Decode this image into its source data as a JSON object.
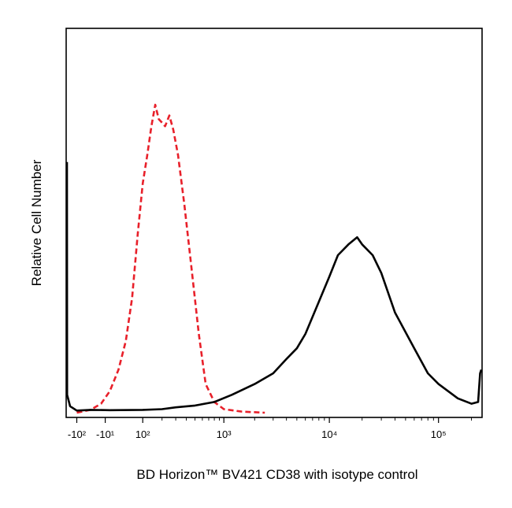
{
  "chart_data": {
    "type": "line",
    "title": "",
    "xlabel": "BD Horizon™ BV421 CD38 with isotype control",
    "ylabel": "Relative Cell Number",
    "x_scale": "biexponential",
    "xlim": [
      -150,
      250000
    ],
    "ylim": [
      0,
      100
    ],
    "grid": false,
    "legend": "none",
    "x_ticks": [
      {
        "value": -100,
        "label": "-10²"
      },
      {
        "value": -10,
        "label": "-10¹"
      },
      {
        "value": 100,
        "label": "10²"
      },
      {
        "value": 1000,
        "label": "10³"
      },
      {
        "value": 10000,
        "label": "10⁴"
      },
      {
        "value": 100000,
        "label": "10⁵"
      }
    ],
    "series": [
      {
        "color": "#e8202a",
        "dash": true,
        "points": [
          [
            -100,
            0
          ],
          [
            -50,
            0.8
          ],
          [
            -20,
            2.5
          ],
          [
            0,
            6
          ],
          [
            20,
            12
          ],
          [
            40,
            20
          ],
          [
            60,
            32
          ],
          [
            80,
            50
          ],
          [
            100,
            64
          ],
          [
            120,
            72
          ],
          [
            140,
            80
          ],
          [
            160,
            86
          ],
          [
            180,
            82
          ],
          [
            200,
            81
          ],
          [
            220,
            80
          ],
          [
            250,
            83
          ],
          [
            280,
            79
          ],
          [
            320,
            72
          ],
          [
            380,
            58
          ],
          [
            450,
            42
          ],
          [
            550,
            22
          ],
          [
            650,
            8
          ],
          [
            800,
            3
          ],
          [
            1000,
            1
          ],
          [
            1500,
            0.3
          ],
          [
            2500,
            0
          ]
        ]
      },
      {
        "color": "#000000",
        "dash": false,
        "points": [
          [
            -150,
            70
          ],
          [
            -145,
            5
          ],
          [
            -130,
            1.8
          ],
          [
            -100,
            0.6
          ],
          [
            -50,
            0.8
          ],
          [
            0,
            0.7
          ],
          [
            100,
            0.8
          ],
          [
            200,
            1
          ],
          [
            300,
            1.5
          ],
          [
            500,
            2
          ],
          [
            800,
            3
          ],
          [
            1200,
            5
          ],
          [
            2000,
            8
          ],
          [
            3000,
            11
          ],
          [
            4000,
            15
          ],
          [
            5000,
            18
          ],
          [
            6000,
            22
          ],
          [
            8000,
            31
          ],
          [
            10000,
            38
          ],
          [
            12000,
            44
          ],
          [
            15000,
            47
          ],
          [
            18000,
            49
          ],
          [
            20000,
            47
          ],
          [
            25000,
            44
          ],
          [
            30000,
            39
          ],
          [
            40000,
            28
          ],
          [
            60000,
            18
          ],
          [
            80000,
            11
          ],
          [
            100000,
            8
          ],
          [
            150000,
            4
          ],
          [
            200000,
            2.5
          ],
          [
            230000,
            3
          ],
          [
            240000,
            11
          ],
          [
            250000,
            12
          ]
        ]
      }
    ]
  }
}
